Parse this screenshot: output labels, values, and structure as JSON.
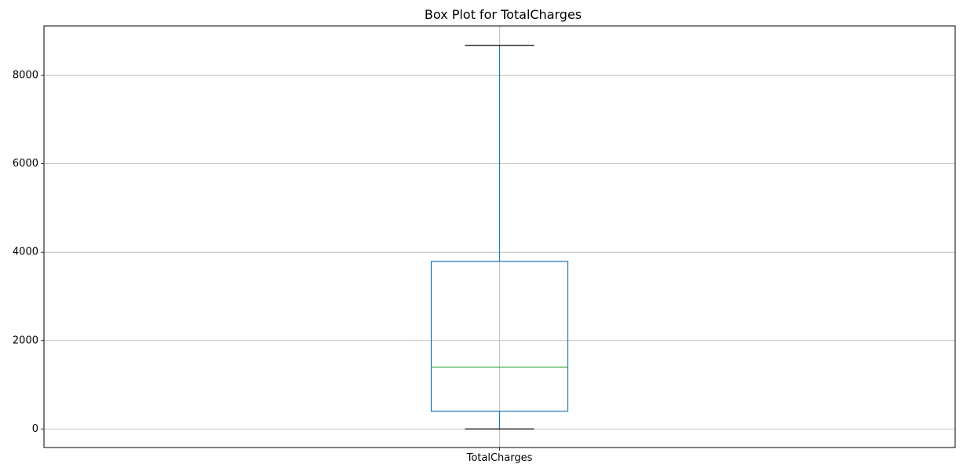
{
  "chart_data": {
    "type": "box",
    "title": "Box Plot for TotalCharges",
    "xlabel": "",
    "ylabel": "",
    "categories": [
      "TotalCharges"
    ],
    "boxes": [
      {
        "name": "TotalCharges",
        "whisker_low": 0,
        "q1": 400,
        "median": 1400,
        "q3": 3790,
        "whisker_high": 8680
      }
    ],
    "ylim": [
      -420,
      9120
    ],
    "yticks": [
      0,
      2000,
      4000,
      6000,
      8000
    ],
    "ytick_labels": [
      "0",
      "2000",
      "4000",
      "6000",
      "8000"
    ],
    "grid": true,
    "colors": {
      "box": "#1f77b4",
      "median": "#2ca02c",
      "caps": "#000000",
      "grid": "#b0b0b0",
      "axes": "#000000"
    }
  }
}
